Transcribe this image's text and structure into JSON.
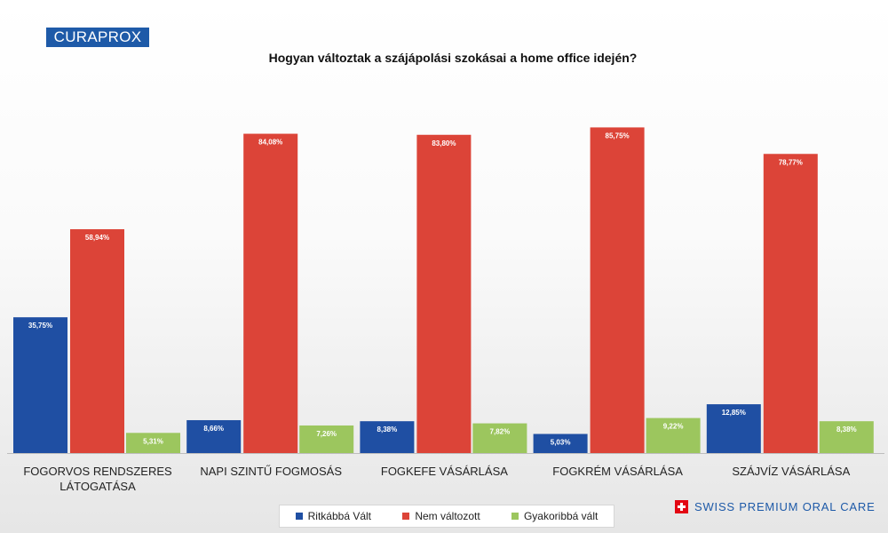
{
  "brand": {
    "logo_text": "CURAPROX",
    "footer_text": "SWISS PREMIUM ORAL CARE",
    "colors": {
      "brand_blue": "#1e5aa8",
      "swiss_red": "#e30613"
    }
  },
  "chart_data": {
    "type": "bar",
    "title": "Hogyan változtak a szájápolási szokásai a home office idején?",
    "xlabel": "",
    "ylabel": "",
    "ylim": [
      0,
      100
    ],
    "grid": false,
    "legend_position": "bottom",
    "categories": [
      [
        "FOGORVOS RENDSZERES",
        "LÁTOGATÁSA"
      ],
      [
        "NAPI SZINTŰ FOGMOSÁS"
      ],
      [
        "FOGKEFE VÁSÁRLÁSA"
      ],
      [
        "FOGKRÉM VÁSÁRLÁSA"
      ],
      [
        "SZÁJVÍZ VÁSÁRLÁSA"
      ]
    ],
    "series": [
      {
        "name": "Ritkábbá Vált",
        "color": "#1f4fa3",
        "values": [
          35.75,
          8.66,
          8.38,
          5.03,
          12.85
        ],
        "labels": [
          "35,75%",
          "8,66%",
          "8,38%",
          "5,03%",
          "12,85%"
        ]
      },
      {
        "name": "Nem változott",
        "color": "#dc4438",
        "values": [
          58.94,
          84.08,
          83.8,
          85.75,
          78.77
        ],
        "labels": [
          "58,94%",
          "84,08%",
          "83,80%",
          "85,75%",
          "78,77%"
        ]
      },
      {
        "name": "Gyakoribbá vált",
        "color": "#9cc65e",
        "values": [
          5.31,
          7.26,
          7.82,
          9.22,
          8.38
        ],
        "labels": [
          "5,31%",
          "7,26%",
          "7,82%",
          "9,22%",
          "8,38%"
        ]
      }
    ]
  }
}
